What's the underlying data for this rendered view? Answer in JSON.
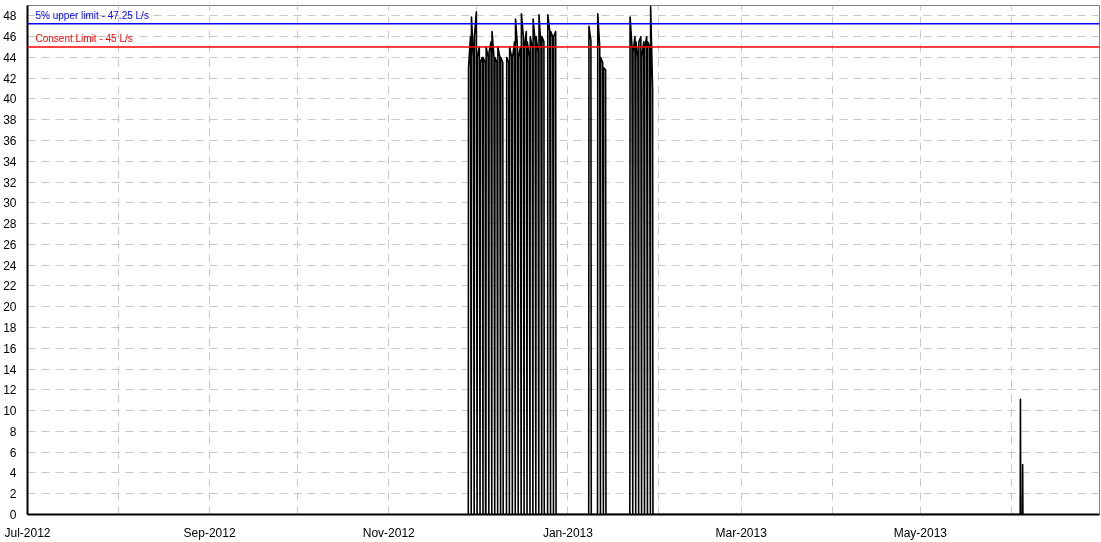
{
  "chart_data": {
    "type": "line",
    "xlim": [
      "2012-07-01",
      "2013-07-01"
    ],
    "ylim": [
      0,
      49
    ],
    "xticks": [
      {
        "value": "2012-07-01",
        "label": "Jul-2012"
      },
      {
        "value": "2012-08-01",
        "label": null
      },
      {
        "value": "2012-09-01",
        "label": "Sep-2012"
      },
      {
        "value": "2012-10-01",
        "label": null
      },
      {
        "value": "2012-11-01",
        "label": "Nov-2012"
      },
      {
        "value": "2012-12-01",
        "label": null
      },
      {
        "value": "2013-01-01",
        "label": "Jan-2013"
      },
      {
        "value": "2013-02-01",
        "label": null
      },
      {
        "value": "2013-03-01",
        "label": "Mar-2013"
      },
      {
        "value": "2013-04-01",
        "label": null
      },
      {
        "value": "2013-05-01",
        "label": "May-2013"
      },
      {
        "value": "2013-06-01",
        "label": null
      }
    ],
    "yticks": [
      0,
      2,
      4,
      6,
      8,
      10,
      12,
      14,
      16,
      18,
      20,
      22,
      24,
      26,
      28,
      30,
      32,
      34,
      36,
      38,
      40,
      42,
      44,
      46,
      48
    ],
    "grid": true,
    "marker": "none",
    "line_style": "solid",
    "ref_lines": [
      {
        "axis": "y",
        "value": 47.25,
        "label": "5% upper limit - 47.25 L/s",
        "color": "#0000ff"
      },
      {
        "axis": "y",
        "value": 45,
        "label": "Consent Limit - 45 L/s",
        "color": "#ff0000"
      }
    ],
    "series": [
      {
        "color": "#000000",
        "x": [
          "2012-11-28T02:00",
          "2012-11-28T04:00",
          "2012-11-28T20:00",
          "2012-11-29T02:00",
          "2012-11-29T04:00",
          "2012-11-29T20:00",
          "2012-11-30T02:00",
          "2012-11-30T04:00",
          "2012-11-30T20:00",
          "2012-12-01T02:00",
          "2012-12-01T04:00",
          "2012-12-01T20:00",
          "2012-12-02T02:00",
          "2012-12-02T04:00",
          "2012-12-02T20:00",
          "2012-12-03T02:00",
          "2012-12-03T04:00",
          "2012-12-03T20:00",
          "2012-12-03T23:00",
          "2012-12-04T02:00",
          "2012-12-04T04:00",
          "2012-12-04T20:00",
          "2012-12-05T02:00",
          "2012-12-05T04:00",
          "2012-12-05T20:00",
          "2012-12-06T02:00",
          "2012-12-06T04:00",
          "2012-12-06T20:00",
          "2012-12-07T02:00",
          "2012-12-07T04:00",
          "2012-12-07T20:00",
          "2012-12-08T02:00",
          "2012-12-08T04:00",
          "2012-12-08T20:00",
          "2012-12-09T02:00",
          "2012-12-09T04:00",
          "2012-12-09T20:00",
          "2012-12-09T23:00",
          "2012-12-11T02:00",
          "2012-12-11T04:00",
          "2012-12-11T20:00",
          "2012-12-12T02:00",
          "2012-12-12T04:00",
          "2012-12-12T20:00",
          "2012-12-13T02:00",
          "2012-12-13T04:00",
          "2012-12-13T20:00",
          "2012-12-14T02:00",
          "2012-12-14T04:00",
          "2012-12-14T20:00",
          "2012-12-15T02:00",
          "2012-12-15T04:00",
          "2012-12-15T20:00",
          "2012-12-16T02:00",
          "2012-12-16T04:00",
          "2012-12-16T20:00",
          "2012-12-17T02:00",
          "2012-12-17T04:00",
          "2012-12-17T20:00",
          "2012-12-18T02:00",
          "2012-12-18T04:00",
          "2012-12-18T20:00",
          "2012-12-19T02:00",
          "2012-12-19T04:00",
          "2012-12-19T20:00",
          "2012-12-20T02:00",
          "2012-12-20T04:00",
          "2012-12-20T20:00",
          "2012-12-21T02:00",
          "2012-12-21T04:00",
          "2012-12-21T20:00",
          "2012-12-22T02:00",
          "2012-12-22T04:00",
          "2012-12-22T20:00",
          "2012-12-23T02:00",
          "2012-12-23T04:00",
          "2012-12-23T20:00",
          "2012-12-23T23:00",
          "2012-12-25T02:00",
          "2012-12-25T04:00",
          "2012-12-25T20:00",
          "2012-12-26T02:00",
          "2012-12-26T04:00",
          "2012-12-26T20:00",
          "2012-12-27T02:00",
          "2012-12-27T04:00",
          "2012-12-27T20:00",
          "2012-12-27T23:00",
          "2013-01-08T02:00",
          "2013-01-08T04:00",
          "2013-01-08T20:00",
          "2013-01-08T23:00",
          "2013-01-11T02:00",
          "2013-01-11T04:00",
          "2013-01-11T20:00",
          "2013-01-12T02:00",
          "2013-01-12T04:00",
          "2013-01-12T20:00",
          "2013-01-13T02:00",
          "2013-01-13T04:00",
          "2013-01-13T20:00",
          "2013-01-13T23:00",
          "2013-01-22T02:00",
          "2013-01-22T04:00",
          "2013-01-22T20:00",
          "2013-01-23T02:00",
          "2013-01-23T04:00",
          "2013-01-23T20:00",
          "2013-01-24T02:00",
          "2013-01-24T04:00",
          "2013-01-24T20:00",
          "2013-01-25T02:00",
          "2013-01-25T04:00",
          "2013-01-25T20:00",
          "2013-01-26T02:00",
          "2013-01-26T04:00",
          "2013-01-26T20:00",
          "2013-01-27T02:00",
          "2013-01-27T04:00",
          "2013-01-27T20:00",
          "2013-01-28T02:00",
          "2013-01-28T04:00",
          "2013-01-28T20:00",
          "2013-01-29T02:00",
          "2013-01-29T04:00",
          "2013-01-29T20:00",
          "2013-01-29T23:00",
          "2013-06-04T00:00",
          "2013-06-04T02:00",
          "2013-06-04T04:00",
          "2013-06-04T18:00",
          "2013-06-04T20:00",
          "2013-06-04T22:00"
        ],
        "values": [
          0,
          43,
          46,
          0,
          47.9,
          44,
          0,
          46,
          48.4,
          0,
          44,
          45,
          0,
          43.5,
          44,
          0,
          44,
          43.5,
          0,
          0,
          45,
          44,
          0,
          44.5,
          45.5,
          0,
          46.5,
          44,
          0,
          44,
          43.5,
          0,
          45,
          44,
          0,
          44,
          43.5,
          0,
          0,
          44,
          43.5,
          0,
          45,
          44,
          0,
          44,
          45.5,
          0,
          47.7,
          45,
          0,
          44,
          45,
          0,
          48.2,
          46,
          0,
          45,
          46.5,
          0,
          45.5,
          44,
          0,
          46,
          45,
          0,
          47.7,
          45.5,
          0,
          46,
          44.5,
          0,
          48.1,
          45,
          0,
          46,
          45.5,
          0,
          0,
          48.1,
          46.5,
          0,
          46.5,
          46,
          0,
          46,
          46.5,
          0,
          0,
          47,
          45.6,
          0,
          0,
          48.2,
          45,
          0,
          44,
          43.5,
          0,
          43,
          42.8,
          0,
          0,
          47.9,
          45,
          0,
          44.5,
          46,
          0,
          45.5,
          44,
          0,
          45.5,
          46,
          0,
          44,
          45.5,
          0,
          45,
          46,
          0,
          45.5,
          45,
          0,
          48.9,
          41,
          0,
          0,
          11.1,
          0,
          0,
          4.8,
          0
        ]
      }
    ]
  }
}
